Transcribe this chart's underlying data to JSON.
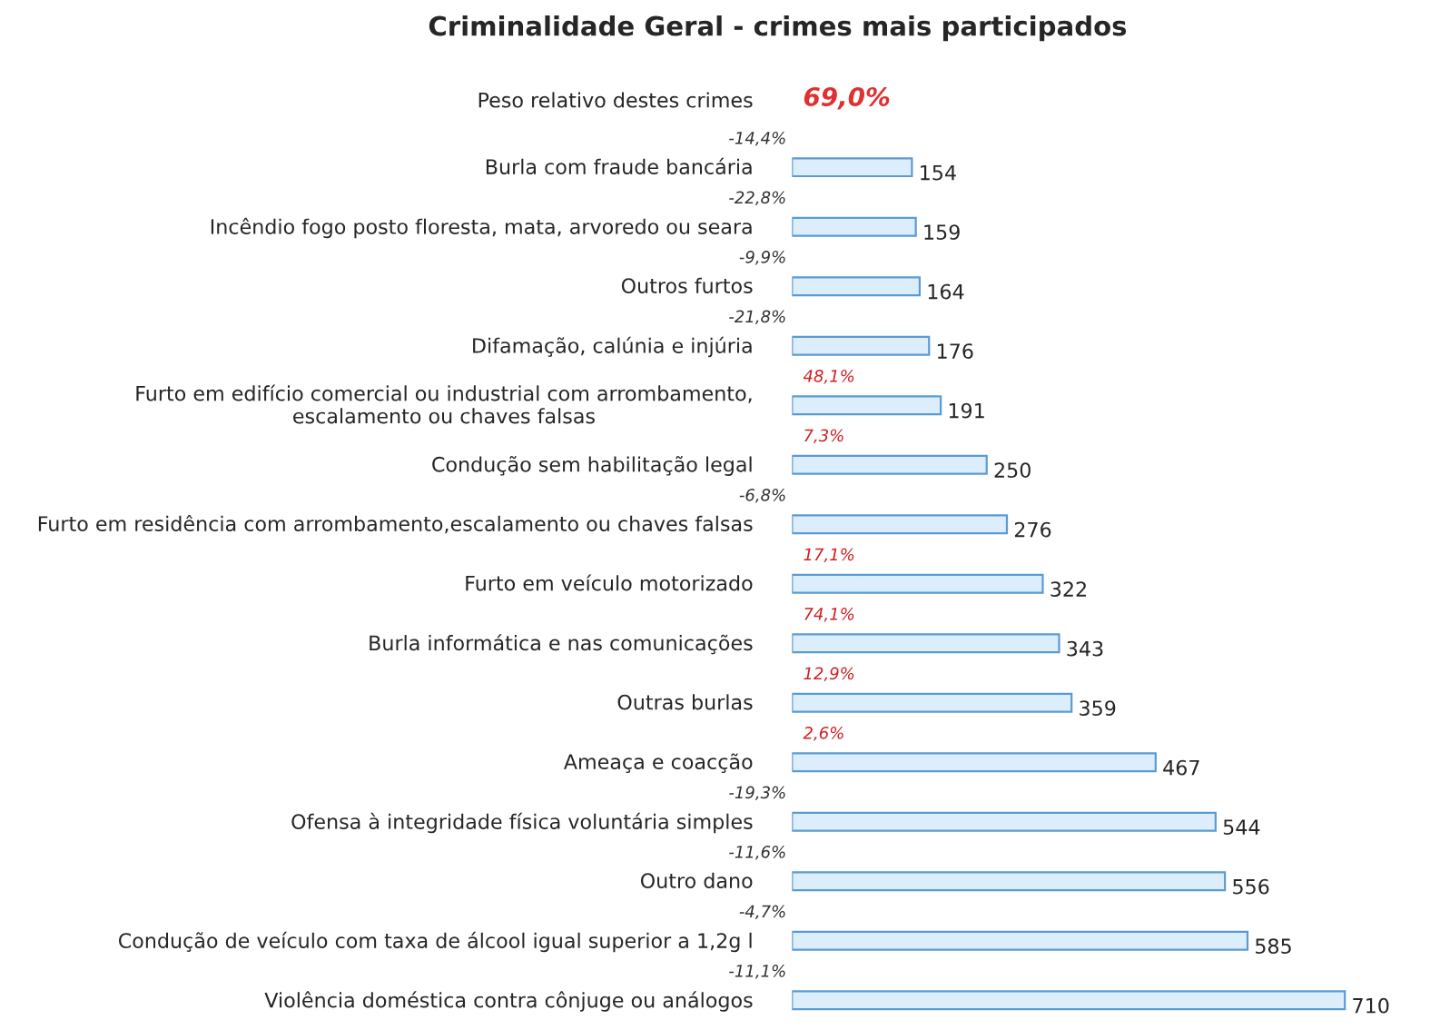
{
  "chart_data": {
    "type": "bar",
    "orientation": "horizontal",
    "title": "Criminalidade Geral - crimes mais participados",
    "categories": [
      "Burla com fraude bancária",
      "Incêndio fogo posto floresta, mata, arvoredo ou seara",
      "Outros furtos",
      "Difamação, calúnia e injúria",
      "Furto em edifício comercial ou industrial com arrombamento,\nescalamento ou chaves falsas",
      "Condução sem habilitação legal",
      "Furto em residência com arrombamento,escalamento ou chaves falsas",
      "Furto em veículo motorizado",
      "Burla informática e nas comunicações",
      "Outras burlas",
      "Ameaça e coacção",
      "Ofensa à integridade física voluntária simples",
      "Outro dano",
      "Condução de veículo com taxa de álcool igual superior a 1,2g l",
      "Violência doméstica contra cônjuge ou análogos"
    ],
    "values": [
      154,
      159,
      164,
      176,
      191,
      250,
      276,
      322,
      343,
      359,
      467,
      544,
      556,
      585,
      710
    ],
    "color": "#dceefb",
    "data_labels": true,
    "annotations": [
      "Peso relativo destes crimes",
      "69,0%",
      "-14,4%",
      "-22,8%",
      "-9,9%",
      "-21,8%",
      "48,1%",
      "7,3%",
      "-6,8%",
      "17,1%",
      "74,1%",
      "12,9%",
      "2,6%",
      "-19,3%",
      "-11,6%",
      "-4,7%",
      "-11,1%"
    ]
  }
}
